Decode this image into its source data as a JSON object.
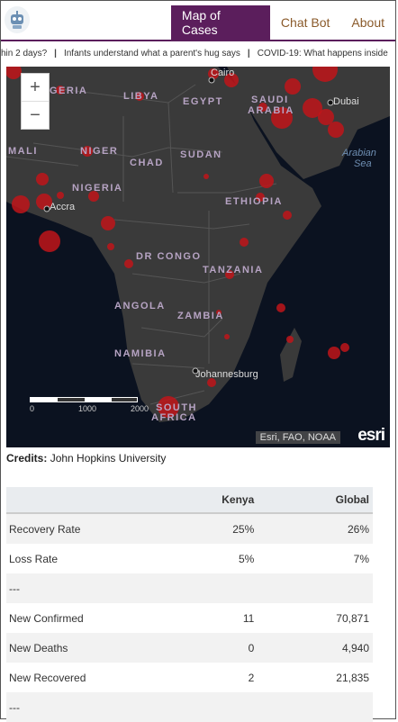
{
  "nav": {
    "items": [
      "Map of Cases",
      "Chat Bot",
      "About"
    ],
    "active_index": 0
  },
  "ticker": {
    "headlines": [
      "hin 2 days?",
      "Infants understand what a parent's hug says",
      "COVID-19: What happens inside"
    ]
  },
  "map": {
    "zoom_in": "+",
    "zoom_out": "−",
    "labels": [
      "GERIA",
      "LIBYA",
      "EGYPT",
      "SAUDI",
      "ARABIA",
      "Cairo",
      "Dubai",
      "MALI",
      "NIGER",
      "CHAD",
      "SUDAN",
      "Arabian",
      "Sea",
      "NIGERIA",
      "ETHIOPIA",
      "Accra",
      "DR CONGO",
      "TANZANIA",
      "ANGOLA",
      "ZAMBIA",
      "NAMIBIA",
      "Johannesburg",
      "SOUTH",
      "AFRICA"
    ],
    "scale_labels": [
      "0",
      "1000",
      "2000"
    ],
    "attribution": "Esri, FAO, NOAA",
    "esri_logo": "esri"
  },
  "credits": {
    "label": "Credits:",
    "value": "John Hopkins University"
  },
  "stats": {
    "columns": [
      "",
      "Kenya",
      "Global"
    ],
    "rows": [
      [
        "Recovery Rate",
        "25%",
        "26%"
      ],
      [
        "Loss Rate",
        "5%",
        "7%"
      ],
      [
        "---",
        "",
        ""
      ],
      [
        "New Confirmed",
        "11",
        "70,871"
      ],
      [
        "New Deaths",
        "0",
        "4,940"
      ],
      [
        "New Recovered",
        "2",
        "21,835"
      ],
      [
        "---",
        "",
        ""
      ]
    ]
  },
  "colors": {
    "nav_active": "#5b1e5c",
    "nav_text": "#8a5a2a",
    "case_marker": "#c0151a",
    "land": "#3a3a3a",
    "ocean": "#0b1220"
  }
}
